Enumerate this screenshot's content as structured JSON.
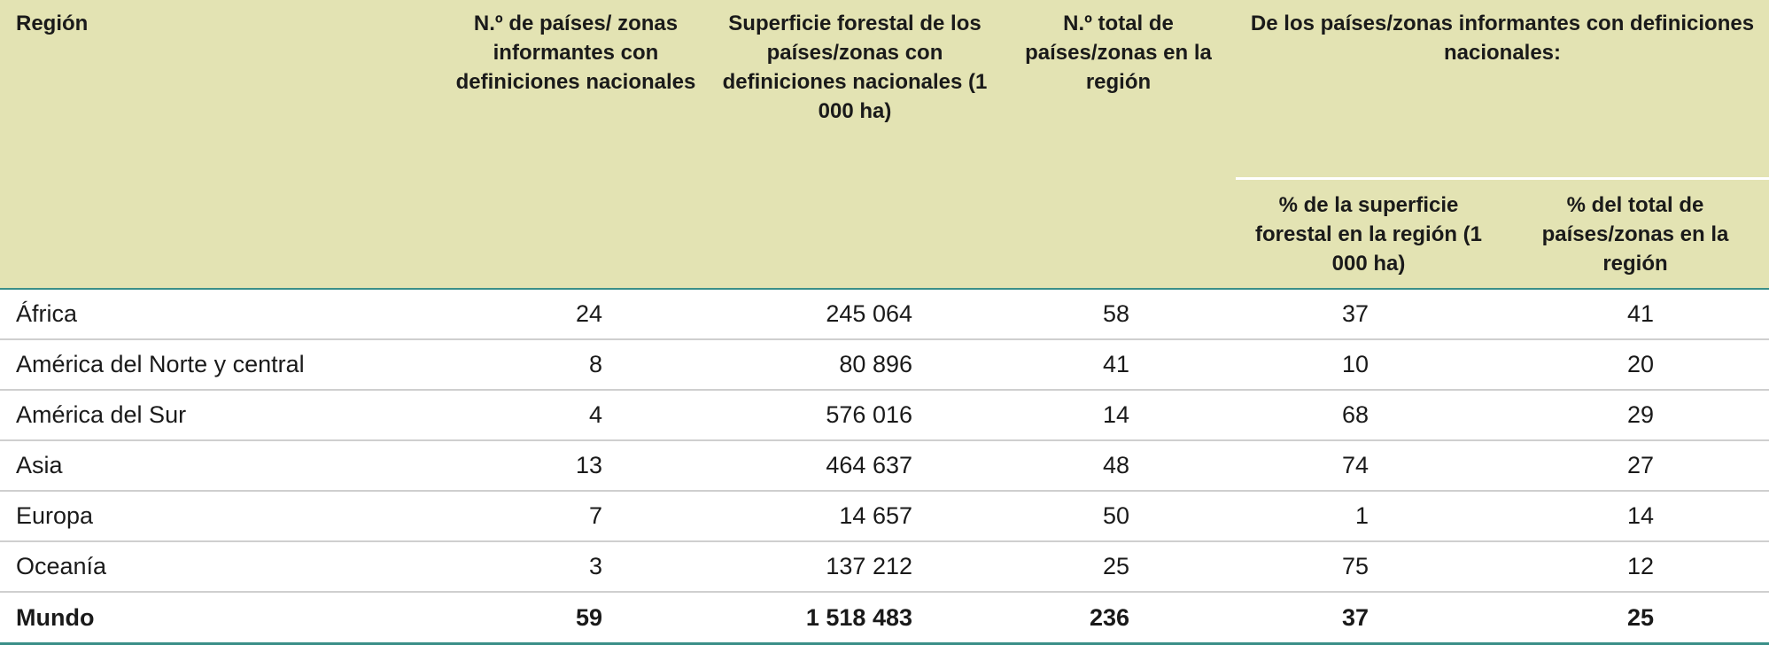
{
  "headers": {
    "region": "Región",
    "col1": "N.º de países/ zonas informantes con definiciones nacionales",
    "col2": "Superficie forestal de los países/zonas con definiciones nacionales (1 000 ha)",
    "col3": "N.º total de países/zonas en la región",
    "group": "De los países/zonas informantes con definiciones nacionales:",
    "col4": "% de la superficie forestal en la región (1 000 ha)",
    "col5": "% del total de países/zonas en la región"
  },
  "rows": [
    {
      "region": "África",
      "c1": "24",
      "c2": "245 064",
      "c3": "58",
      "c4": "37",
      "c5": "41"
    },
    {
      "region": "América del Norte y central",
      "c1": "8",
      "c2": "80 896",
      "c3": "41",
      "c4": "10",
      "c5": "20"
    },
    {
      "region": "América del Sur",
      "c1": "4",
      "c2": "576 016",
      "c3": "14",
      "c4": "68",
      "c5": "29"
    },
    {
      "region": "Asia",
      "c1": "13",
      "c2": "464 637",
      "c3": "48",
      "c4": "74",
      "c5": "27"
    },
    {
      "region": "Europa",
      "c1": "7",
      "c2": "14 657",
      "c3": "50",
      "c4": "1",
      "c5": "14"
    },
    {
      "region": "Oceanía",
      "c1": "3",
      "c2": "137 212",
      "c3": "25",
      "c4": "75",
      "c5": "12"
    }
  ],
  "total": {
    "region": "Mundo",
    "c1": "59",
    "c2": "1 518 483",
    "c3": "236",
    "c4": "37",
    "c5": "25"
  }
}
